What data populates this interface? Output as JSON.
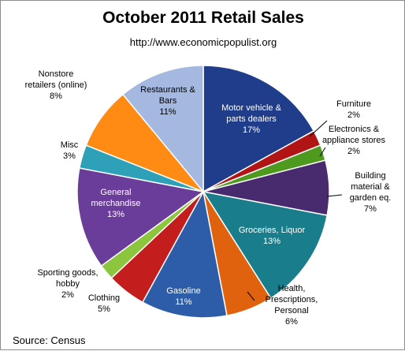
{
  "chart_data": {
    "type": "pie",
    "title": "October 2011 Retail Sales",
    "subtitle": "http://www.economicpopulist.org",
    "source": "Source:  Census",
    "slices": [
      {
        "name": "Motor vehicle & parts dealers",
        "value": 17,
        "label": "17%",
        "color": "#1f3d8a"
      },
      {
        "name": "Furniture",
        "value": 2,
        "label": "2%",
        "color": "#b01414"
      },
      {
        "name": "Electronics & appliance stores",
        "value": 2,
        "label": "2%",
        "color": "#4e9a1f"
      },
      {
        "name": "Building material & garden eq.",
        "value": 7,
        "label": "7%",
        "color": "#482a6e"
      },
      {
        "name": "Groceries, Liquor",
        "value": 13,
        "label": "13%",
        "color": "#1a7d8c"
      },
      {
        "name": "Health, Prescriptions, Personal",
        "value": 6,
        "label": "6%",
        "color": "#e0620f"
      },
      {
        "name": "Gasoline",
        "value": 11,
        "label": "11%",
        "color": "#2d5ca8"
      },
      {
        "name": "Clothing",
        "value": 5,
        "label": "5%",
        "color": "#c41d1d"
      },
      {
        "name": "Sporting goods, hobby",
        "value": 2,
        "label": "2%",
        "color": "#8cc63e"
      },
      {
        "name": "General merchandise",
        "value": 13,
        "label": "13%",
        "color": "#6a3d9a"
      },
      {
        "name": "Misc",
        "value": 3,
        "label": "3%",
        "color": "#2ea1b8"
      },
      {
        "name": "Nonstore retailers (online)",
        "value": 8,
        "label": "8%",
        "color": "#ff8a14"
      },
      {
        "name": "Restaurants & Bars",
        "value": 11,
        "label": "11%",
        "color": "#a5b8e0"
      }
    ]
  }
}
